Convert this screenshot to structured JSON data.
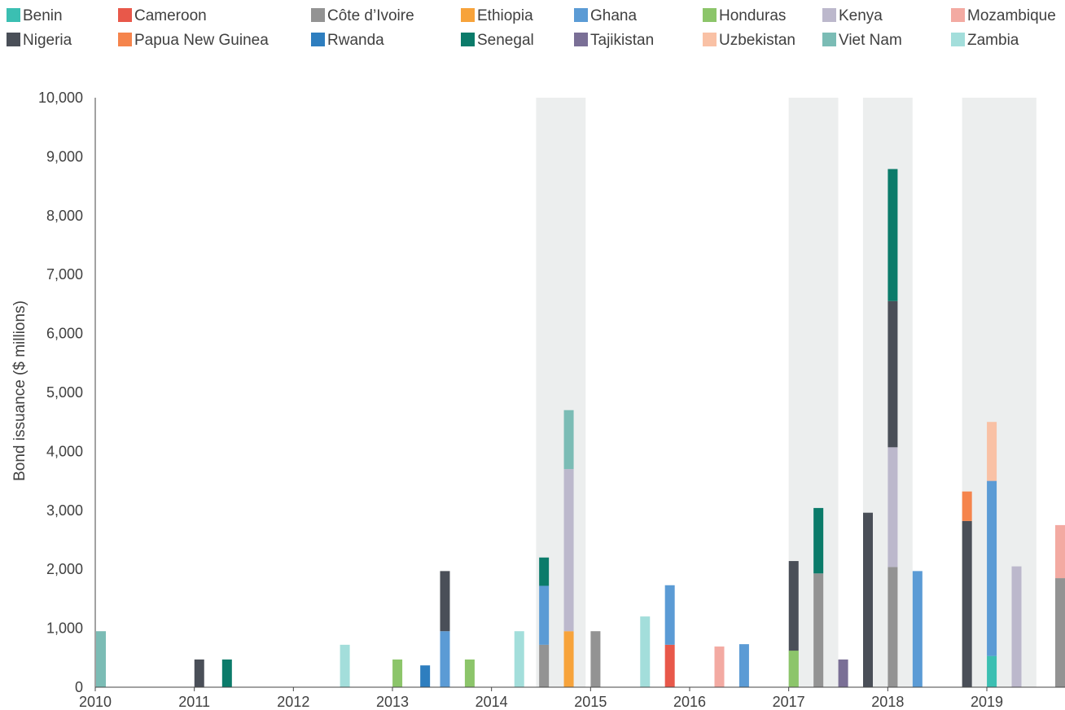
{
  "chart_data": {
    "type": "bar",
    "stacked": true,
    "title": "",
    "ylabel": "Bond issuance ($ millions)",
    "xlabel": "",
    "ylim": [
      0,
      10000
    ],
    "yticks": [
      0,
      1000,
      2000,
      3000,
      4000,
      5000,
      6000,
      7000,
      8000,
      9000,
      10000
    ],
    "ytick_labels": [
      "0",
      "1,000",
      "2,000",
      "3,000",
      "4,000",
      "5,000",
      "6,000",
      "7,000",
      "8,000",
      "9,000",
      "10,000"
    ],
    "xlim": [
      2010,
      2020
    ],
    "xticks": [
      2010,
      2011,
      2012,
      2013,
      2014,
      2015,
      2016,
      2017,
      2018,
      2019
    ],
    "xtick_labels": [
      "2010",
      "2011",
      "2012",
      "2013",
      "2014",
      "2015",
      "2016",
      "2017",
      "2018",
      "2019"
    ],
    "grid": false,
    "legend_position": "top",
    "countries": [
      {
        "name": "Benin",
        "color": "#3bbfb2"
      },
      {
        "name": "Cameroon",
        "color": "#e8584a"
      },
      {
        "name": "Côte d’Ivoire",
        "color": "#939393"
      },
      {
        "name": "Ethiopia",
        "color": "#f7a33b"
      },
      {
        "name": "Ghana",
        "color": "#5b9bd5"
      },
      {
        "name": "Honduras",
        "color": "#8cc56a"
      },
      {
        "name": "Kenya",
        "color": "#bcb8cc"
      },
      {
        "name": "Mozambique",
        "color": "#f3aaa2"
      },
      {
        "name": "Nigeria",
        "color": "#4a4f58"
      },
      {
        "name": "Papua New Guinea",
        "color": "#f5844c"
      },
      {
        "name": "Rwanda",
        "color": "#2e7ebf"
      },
      {
        "name": "Senegal",
        "color": "#0b7b6a"
      },
      {
        "name": "Tajikistan",
        "color": "#7a6f96"
      },
      {
        "name": "Uzbekistan",
        "color": "#f9c1a5"
      },
      {
        "name": "Viet Nam",
        "color": "#7bbcb5"
      },
      {
        "name": "Zambia",
        "color": "#a3dedb"
      }
    ],
    "shaded_periods": [
      [
        2014.45,
        2014.95
      ],
      [
        2017.0,
        2017.5
      ],
      [
        2017.75,
        2018.25
      ],
      [
        2018.75,
        2019.5
      ]
    ],
    "bars": [
      {
        "x": 2010.0,
        "segments": [
          {
            "country": "Viet Nam",
            "value": 950
          }
        ]
      },
      {
        "x": 2011.05,
        "segments": [
          {
            "country": "Nigeria",
            "value": 470
          }
        ]
      },
      {
        "x": 2011.33,
        "segments": [
          {
            "country": "Senegal",
            "value": 470
          }
        ]
      },
      {
        "x": 2012.52,
        "segments": [
          {
            "country": "Zambia",
            "value": 720
          }
        ]
      },
      {
        "x": 2013.05,
        "segments": [
          {
            "country": "Honduras",
            "value": 470
          }
        ]
      },
      {
        "x": 2013.33,
        "segments": [
          {
            "country": "Rwanda",
            "value": 370
          }
        ]
      },
      {
        "x": 2013.53,
        "segments": [
          {
            "country": "Ghana",
            "value": 950
          },
          {
            "country": "Nigeria",
            "value": 1020
          }
        ]
      },
      {
        "x": 2013.78,
        "segments": [
          {
            "country": "Honduras",
            "value": 470
          }
        ]
      },
      {
        "x": 2014.28,
        "segments": [
          {
            "country": "Zambia",
            "value": 950
          }
        ]
      },
      {
        "x": 2014.53,
        "segments": [
          {
            "country": "Côte d’Ivoire",
            "value": 720
          },
          {
            "country": "Ghana",
            "value": 1000
          },
          {
            "country": "Senegal",
            "value": 480
          }
        ]
      },
      {
        "x": 2014.78,
        "segments": [
          {
            "country": "Ethiopia",
            "value": 950
          },
          {
            "country": "Kenya",
            "value": 2750
          },
          {
            "country": "Viet Nam",
            "value": 1000
          }
        ]
      },
      {
        "x": 2015.05,
        "segments": [
          {
            "country": "Côte d’Ivoire",
            "value": 950
          }
        ]
      },
      {
        "x": 2015.55,
        "segments": [
          {
            "country": "Zambia",
            "value": 1200
          }
        ]
      },
      {
        "x": 2015.8,
        "segments": [
          {
            "country": "Cameroon",
            "value": 720
          },
          {
            "country": "Ghana",
            "value": 1010
          }
        ]
      },
      {
        "x": 2016.3,
        "segments": [
          {
            "country": "Mozambique",
            "value": 690
          }
        ]
      },
      {
        "x": 2016.55,
        "segments": [
          {
            "country": "Ghana",
            "value": 730
          }
        ]
      },
      {
        "x": 2017.05,
        "segments": [
          {
            "country": "Honduras",
            "value": 620
          }
        ]
      },
      {
        "x": 2017.05,
        "segments": [
          {
            "country": "Honduras",
            "value": 620
          },
          {
            "country": "Nigeria",
            "value": 1520
          }
        ]
      },
      {
        "x": 2017.3,
        "segments": [
          {
            "country": "Côte d’Ivoire",
            "value": 1930
          },
          {
            "country": "Senegal",
            "value": 1110
          }
        ]
      },
      {
        "x": 2017.55,
        "segments": [
          {
            "country": "Tajikistan",
            "value": 470
          }
        ]
      },
      {
        "x": 2017.8,
        "segments": [
          {
            "country": "Nigeria",
            "value": 2960
          }
        ]
      },
      {
        "x": 2018.05,
        "segments": [
          {
            "country": "Côte d’Ivoire",
            "value": 2040
          },
          {
            "country": "Kenya",
            "value": 2030
          },
          {
            "country": "Nigeria",
            "value": 2480
          },
          {
            "country": "Senegal",
            "value": 2240
          }
        ]
      },
      {
        "x": 2018.3,
        "segments": [
          {
            "country": "Ghana",
            "value": 1970
          }
        ]
      },
      {
        "x": 2018.8,
        "segments": [
          {
            "country": "Nigeria",
            "value": 2820
          },
          {
            "country": "Papua New Guinea",
            "value": 500
          }
        ]
      },
      {
        "x": 2019.05,
        "segments": [
          {
            "country": "Benin",
            "value": 530
          },
          {
            "country": "Ghana",
            "value": 2970
          },
          {
            "country": "Uzbekistan",
            "value": 1000
          }
        ]
      },
      {
        "x": 2019.3,
        "segments": [
          {
            "country": "Kenya",
            "value": 2050
          }
        ]
      },
      {
        "x": 2019.8,
        "segments": [
          {
            "country": "Côte d’Ivoire",
            "value": 1850
          },
          {
            "country": "Mozambique",
            "value": 900
          }
        ]
      }
    ]
  }
}
